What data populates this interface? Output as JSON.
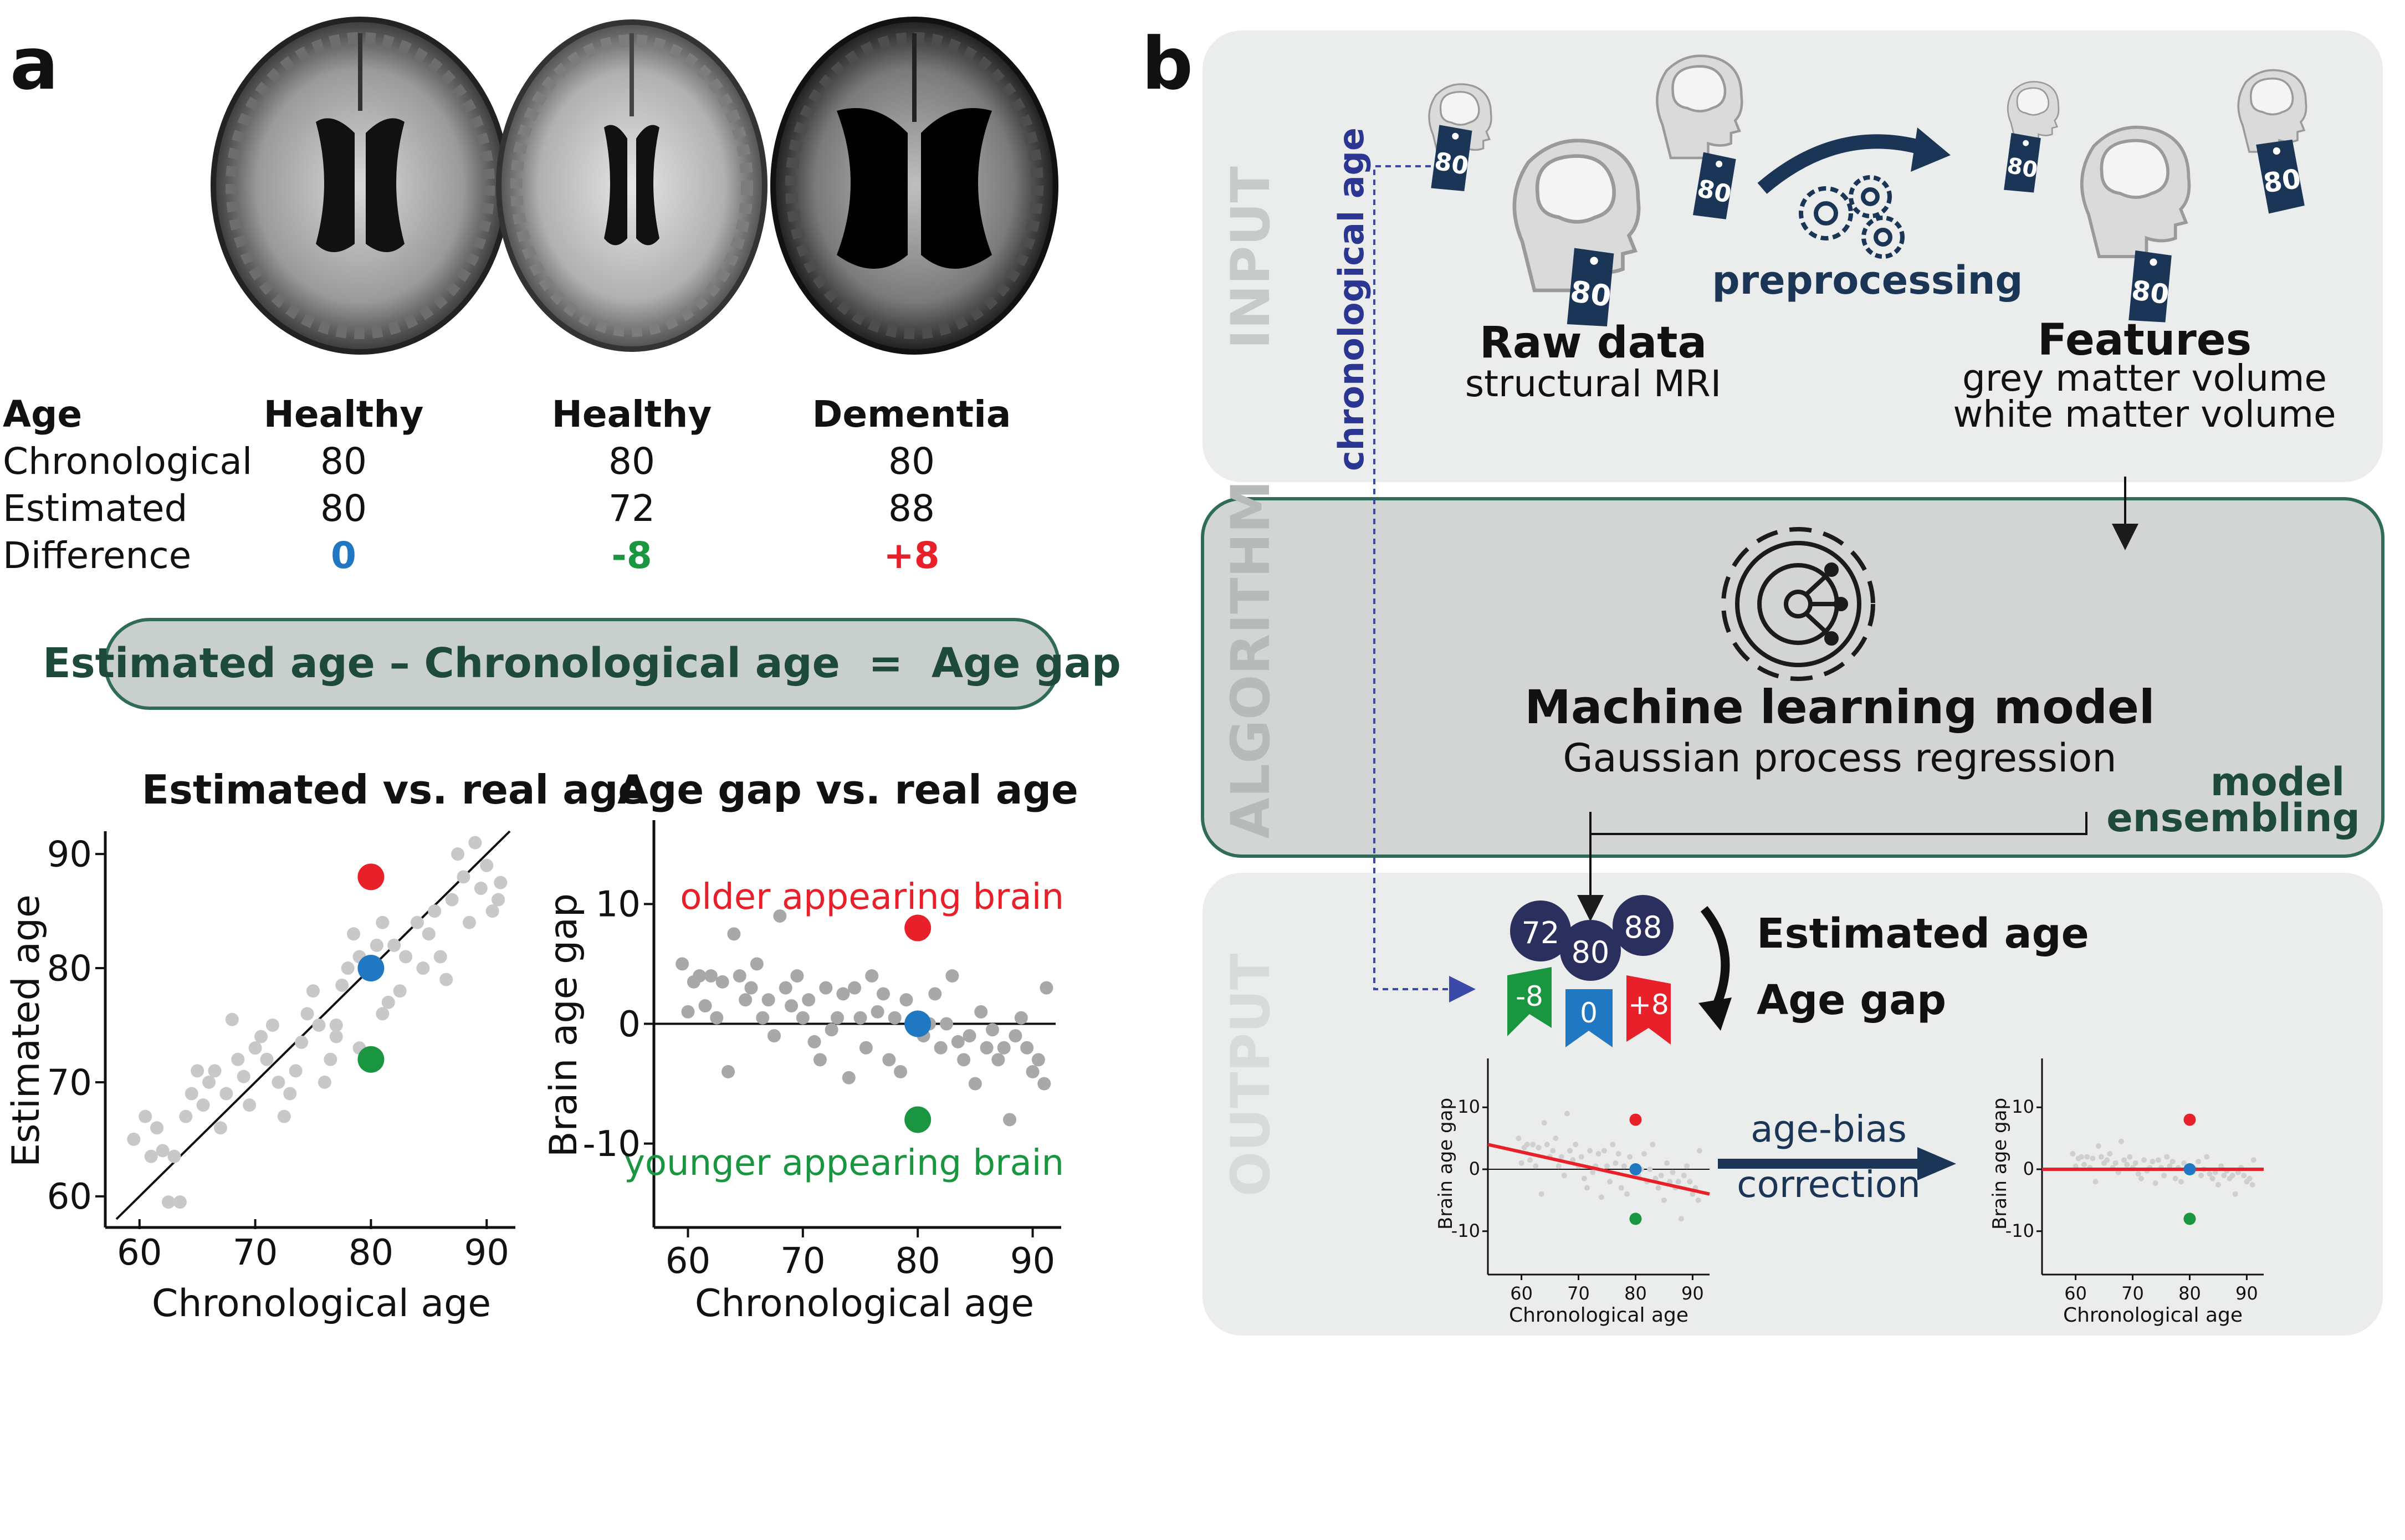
{
  "panel_a": {
    "letter": "a",
    "table": {
      "header": [
        "Age",
        "Healthy",
        "Healthy",
        "Dementia"
      ],
      "rows": [
        {
          "label": "Chronological",
          "values": [
            "80",
            "80",
            "80"
          ]
        },
        {
          "label": "Estimated",
          "values": [
            "80",
            "72",
            "88"
          ]
        },
        {
          "label": "Difference",
          "values": [
            "0",
            "-8",
            "+8"
          ]
        }
      ]
    },
    "equation": "Estimated age – Chronological age  =  Age gap",
    "colors": {
      "zero": "#1f78c1",
      "minus": "#1a9641",
      "plus": "#e8202a",
      "equation_fill": "#c9cfcd",
      "equation_border": "#2f6b57"
    }
  },
  "panel_b": {
    "letter": "b",
    "sections": {
      "input": "INPUT",
      "algorithm": "ALGORITHM",
      "output": "OUTPUT"
    },
    "chronological_age_label": "chronological age",
    "raw_data_title": "Raw data",
    "raw_data_sub": "structural MRI",
    "preprocessing": "preprocessing",
    "features_title": "Features",
    "features_sub1": "grey matter volume",
    "features_sub2": "white matter volume",
    "tag_value": "80",
    "ml_title": "Machine learning model",
    "ml_sub": "Gaussian process regression",
    "ensembling": [
      "model",
      "ensembling"
    ],
    "balls": [
      "72",
      "80",
      "88"
    ],
    "flags": [
      "-8",
      "0",
      "+8"
    ],
    "estimated_age": "Estimated age",
    "age_gap": "Age gap",
    "correction": [
      "age-bias",
      "correction"
    ],
    "mini_plot": {
      "ylabel": "Brain age gap",
      "xlabel": "Chronological age",
      "yticks": [
        "10",
        "0",
        "-10"
      ],
      "xticks": [
        "60",
        "70",
        "80",
        "90"
      ]
    },
    "colors": {
      "navy": "#1b3557",
      "ball": "#2b2f5e",
      "input_bg": "#ebedec",
      "algo_bg": "#d3d5d4",
      "algo_border": "#2f6b57",
      "section_label": "#c7cac9"
    }
  },
  "chart_data": [
    {
      "type": "scatter",
      "title": "Estimated vs. real age",
      "xlabel": "Chronological age",
      "ylabel": "Estimated age",
      "xlim": [
        58,
        92
      ],
      "ylim": [
        58,
        92
      ],
      "xticks": [
        60,
        70,
        80,
        90
      ],
      "yticks": [
        60,
        70,
        80,
        90
      ],
      "identity_line": true,
      "series": [
        {
          "color": "#c8c8c8",
          "x": [
            59.5,
            60.5,
            61,
            61.5,
            62,
            62.5,
            63,
            63.5,
            64,
            64.5,
            65,
            65.5,
            66,
            66.5,
            67,
            67.5,
            68,
            68.5,
            69,
            69.5,
            70,
            70.5,
            71,
            71.5,
            72,
            72.5,
            73,
            73.5,
            74,
            74.5,
            75,
            75.5,
            76,
            76.5,
            77,
            77.5,
            78,
            79,
            80.5,
            81,
            81.5,
            82,
            82.5,
            83,
            84,
            84.5,
            85,
            85.5,
            86,
            86.5,
            87,
            87.5,
            88,
            88.5,
            89,
            89.5,
            90,
            90.5,
            91,
            91.2,
            80.5,
            81,
            77,
            79,
            78.5
          ],
          "y": [
            65,
            67,
            63.5,
            66,
            64,
            59.5,
            63.5,
            59.5,
            67,
            69,
            71,
            68,
            70,
            71,
            66,
            69,
            75.5,
            72,
            70.5,
            68,
            73,
            74,
            72,
            75,
            70,
            67,
            69,
            71,
            73.5,
            76,
            78,
            75,
            70,
            72,
            74,
            78.5,
            80,
            81,
            80,
            76,
            77,
            82,
            78,
            81,
            84,
            80,
            83,
            85,
            81,
            79,
            86,
            90,
            88,
            84,
            91,
            87,
            89,
            85,
            86,
            87.5,
            82,
            84,
            75,
            73,
            83
          ]
        }
      ],
      "highlights": [
        {
          "x": 80,
          "y": 88,
          "color": "#e8202a"
        },
        {
          "x": 80,
          "y": 80,
          "color": "#1f78c1"
        },
        {
          "x": 80,
          "y": 72,
          "color": "#1a9641"
        }
      ]
    },
    {
      "type": "scatter",
      "title": "Age gap vs. real age",
      "xlabel": "Chronological age",
      "ylabel": "Brain age gap",
      "xlim": [
        58,
        92
      ],
      "ylim": [
        -17,
        17
      ],
      "xticks": [
        60,
        70,
        80,
        90
      ],
      "yticks": [
        10,
        0,
        -10
      ],
      "zero_line": true,
      "series": [
        {
          "color": "#a8a8a8",
          "x": [
            59.5,
            60,
            60.5,
            61,
            61.5,
            62,
            62.5,
            63,
            63.5,
            64,
            64.5,
            65,
            65.5,
            66,
            66.5,
            67,
            67.5,
            68,
            68.5,
            69,
            69.5,
            70,
            70.5,
            71,
            71.5,
            72,
            72.5,
            73,
            73.5,
            74,
            74.5,
            75,
            75.5,
            76,
            76.5,
            77,
            77.5,
            78,
            78.5,
            79,
            80.5,
            81,
            81.5,
            82,
            82.5,
            83,
            83.5,
            84,
            84.5,
            85,
            85.5,
            86,
            86.5,
            87,
            87.5,
            88,
            88.5,
            89,
            89.5,
            90,
            90.5,
            91,
            91.2
          ],
          "y": [
            5,
            1,
            3.5,
            4,
            1.5,
            4,
            0.5,
            3.5,
            -4,
            7.5,
            4,
            2,
            3,
            5,
            0.5,
            2,
            -1,
            9,
            3,
            1.5,
            4,
            0.5,
            2,
            -1.5,
            -3,
            3,
            -0.5,
            0.5,
            2.5,
            -4.5,
            3,
            0.5,
            -2,
            4,
            1,
            2.5,
            -3,
            0.5,
            -4,
            2,
            -1,
            0,
            2.5,
            -2,
            0,
            4,
            -1.5,
            -3,
            -1,
            -5,
            1,
            -2,
            -0.5,
            -3,
            -2,
            -8,
            -1,
            0.5,
            -2,
            -4,
            -3,
            -5,
            3
          ]
        }
      ],
      "highlights": [
        {
          "x": 80,
          "y": 8,
          "color": "#e8202a"
        },
        {
          "x": 80,
          "y": 0,
          "color": "#1f78c1"
        },
        {
          "x": 80,
          "y": -8,
          "color": "#1a9641"
        }
      ],
      "annotations": [
        {
          "text": "older appearing brain",
          "color": "#e8202a"
        },
        {
          "text": "younger appearing brain",
          "color": "#1a9641"
        }
      ]
    }
  ]
}
